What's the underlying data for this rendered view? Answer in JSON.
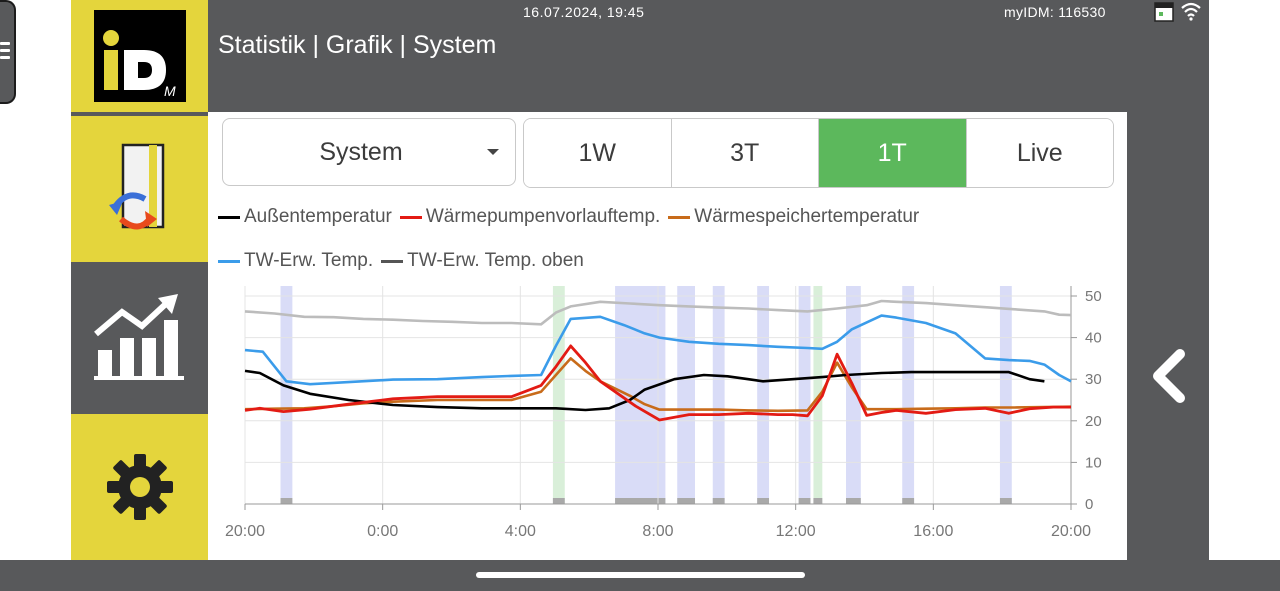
{
  "header": {
    "datetime": "16.07.2024, 19:45",
    "breadcrumb": "Statistik | Grafik | System",
    "device_id": "myIDM: 116530"
  },
  "sidebar": {
    "items": [
      {
        "name": "logo",
        "icon": "idm-logo"
      },
      {
        "name": "heat-pump",
        "icon": "heat-pump-icon"
      },
      {
        "name": "statistics",
        "icon": "bar-chart-trend-icon",
        "active": true
      },
      {
        "name": "settings",
        "icon": "gear-icon"
      }
    ]
  },
  "controls": {
    "dropdown_value": "System",
    "range_buttons": [
      {
        "label": "1W",
        "active": false
      },
      {
        "label": "3T",
        "active": false
      },
      {
        "label": "1T",
        "active": true
      },
      {
        "label": "Live",
        "active": false
      }
    ]
  },
  "colors": {
    "brand_yellow": "#e4d53c",
    "panel_gray": "#58595b",
    "active_green": "#5cb85c",
    "blue_band": "#d9dcf7",
    "green_band": "#d9efd9"
  },
  "chart_data": {
    "type": "line",
    "x_ticks": [
      "20:00",
      "0:00",
      "4:00",
      "8:00",
      "12:00",
      "16:00",
      "20:00"
    ],
    "y_ticks": [
      "0",
      "10",
      "20",
      "30",
      "40",
      "50"
    ],
    "ylim": [
      0,
      50
    ],
    "xlim_hours": [
      0,
      24
    ],
    "legend_position": "top",
    "series": [
      {
        "name": "Außentemperatur",
        "color": "#000000",
        "points": [
          [
            0,
            32
          ],
          [
            0.5,
            31.5
          ],
          [
            1.3,
            28.5
          ],
          [
            2.2,
            26.5
          ],
          [
            3.5,
            25
          ],
          [
            5,
            23.8
          ],
          [
            6.5,
            23.3
          ],
          [
            8,
            23
          ],
          [
            9,
            23
          ],
          [
            10.5,
            23
          ],
          [
            11.5,
            22.6
          ],
          [
            12.3,
            23
          ],
          [
            13,
            25
          ],
          [
            13.5,
            27.5
          ],
          [
            14.5,
            30
          ],
          [
            15.5,
            31
          ],
          [
            16.3,
            30.7
          ],
          [
            17,
            30
          ],
          [
            17.5,
            29.5
          ],
          [
            18.5,
            30
          ],
          [
            19.5,
            30.5
          ],
          [
            20.3,
            31
          ],
          [
            21.5,
            31.5
          ],
          [
            22.5,
            31.7
          ],
          [
            23.8,
            31.7
          ],
          [
            25,
            31.7
          ],
          [
            25.8,
            31.7
          ],
          [
            26.5,
            30
          ],
          [
            27,
            29.5
          ]
        ]
      },
      {
        "name": "Wärmepumpenvorlauftemp.",
        "color": "#e31b14",
        "points": [
          [
            0,
            22.5
          ],
          [
            0.5,
            23
          ],
          [
            1.3,
            22.2
          ],
          [
            2.2,
            22.8
          ],
          [
            3.5,
            24
          ],
          [
            5,
            25.3
          ],
          [
            6.5,
            25.8
          ],
          [
            8,
            25.8
          ],
          [
            9,
            25.8
          ],
          [
            10,
            28.5
          ],
          [
            10.5,
            33
          ],
          [
            11,
            38
          ],
          [
            11.5,
            34
          ],
          [
            12,
            29.5
          ],
          [
            12.5,
            27
          ],
          [
            13.2,
            23.5
          ],
          [
            14,
            20.2
          ],
          [
            15,
            21.5
          ],
          [
            16,
            21.5
          ],
          [
            17,
            21.8
          ],
          [
            18,
            21.5
          ],
          [
            18.5,
            21.5
          ],
          [
            19,
            21.2
          ],
          [
            19.5,
            26
          ],
          [
            20,
            36
          ],
          [
            20.5,
            29
          ],
          [
            21,
            21.3
          ],
          [
            21.5,
            22
          ],
          [
            22,
            22.5
          ],
          [
            23,
            21.8
          ],
          [
            24,
            22.7
          ],
          [
            25,
            23
          ],
          [
            25.8,
            21.8
          ],
          [
            26.5,
            22.9
          ],
          [
            27.3,
            23.3
          ],
          [
            27.9,
            23.3
          ]
        ]
      },
      {
        "name": "Wärmespeichertemperatur",
        "color": "#c86b1a",
        "points": [
          [
            0,
            22.8
          ],
          [
            1,
            22.9
          ],
          [
            2,
            23
          ],
          [
            3,
            23.5
          ],
          [
            4,
            24.2
          ],
          [
            5,
            24.6
          ],
          [
            6.5,
            25
          ],
          [
            8,
            25
          ],
          [
            9,
            25
          ],
          [
            10,
            27
          ],
          [
            10.5,
            31
          ],
          [
            11,
            35
          ],
          [
            11.5,
            32
          ],
          [
            12,
            29.5
          ],
          [
            13,
            26
          ],
          [
            13.5,
            24
          ],
          [
            14,
            22.7
          ],
          [
            15,
            22.7
          ],
          [
            16,
            22.7
          ],
          [
            17,
            22.5
          ],
          [
            18,
            22.4
          ],
          [
            19,
            22.5
          ],
          [
            19.5,
            27
          ],
          [
            20,
            34
          ],
          [
            20.5,
            28
          ],
          [
            21,
            22.8
          ],
          [
            22,
            22.8
          ],
          [
            23,
            22.9
          ],
          [
            24,
            23
          ],
          [
            25,
            23.2
          ],
          [
            26,
            23.2
          ],
          [
            27,
            23.3
          ],
          [
            27.9,
            23.4
          ]
        ]
      },
      {
        "name": "TW-Erw. Temp.",
        "color": "#3b9cea",
        "points": [
          [
            0,
            37
          ],
          [
            0.6,
            36.6
          ],
          [
            1.4,
            29.5
          ],
          [
            2.2,
            28.8
          ],
          [
            3.5,
            29.3
          ],
          [
            5,
            29.9
          ],
          [
            6.5,
            30
          ],
          [
            8,
            30.5
          ],
          [
            9,
            30.8
          ],
          [
            10,
            31
          ],
          [
            10.5,
            38
          ],
          [
            11,
            44.5
          ],
          [
            12,
            45
          ],
          [
            12.8,
            43
          ],
          [
            13.5,
            41
          ],
          [
            14,
            40
          ],
          [
            15,
            39
          ],
          [
            16,
            38.5
          ],
          [
            17,
            38.2
          ],
          [
            18,
            37.8
          ],
          [
            19,
            37.5
          ],
          [
            19.5,
            37.3
          ],
          [
            20,
            39
          ],
          [
            20.5,
            42
          ],
          [
            21.5,
            45.3
          ],
          [
            22,
            44.8
          ],
          [
            23,
            43.5
          ],
          [
            24,
            41
          ],
          [
            25,
            35
          ],
          [
            25.8,
            34.6
          ],
          [
            26.5,
            34.4
          ],
          [
            27,
            33.5
          ],
          [
            27.5,
            31
          ],
          [
            27.9,
            29.5
          ]
        ]
      },
      {
        "name": "TW-Erw. Temp. oben",
        "color": "#bcbcbc",
        "points": [
          [
            0,
            46.3
          ],
          [
            1,
            45.8
          ],
          [
            2,
            45
          ],
          [
            3,
            44.9
          ],
          [
            4,
            44.5
          ],
          [
            5,
            44.3
          ],
          [
            6,
            44
          ],
          [
            7,
            43.8
          ],
          [
            8,
            43.5
          ],
          [
            9,
            43.5
          ],
          [
            10,
            43.2
          ],
          [
            10.5,
            46
          ],
          [
            11,
            47.5
          ],
          [
            12,
            48.6
          ],
          [
            13,
            48.2
          ],
          [
            14,
            47.8
          ],
          [
            15,
            47.5
          ],
          [
            16,
            47.2
          ],
          [
            17,
            47
          ],
          [
            18,
            46.6
          ],
          [
            19,
            46.3
          ],
          [
            20,
            47
          ],
          [
            21,
            47.8
          ],
          [
            21.5,
            48.8
          ],
          [
            22,
            48.6
          ],
          [
            23,
            48.3
          ],
          [
            24,
            47.8
          ],
          [
            25,
            47.3
          ],
          [
            26,
            46.8
          ],
          [
            27,
            46.3
          ],
          [
            27.5,
            45.5
          ],
          [
            27.9,
            45.4
          ]
        ]
      }
    ],
    "highlight_bands_blue": [
      [
        1.2,
        1.6
      ],
      [
        12.5,
        14.2
      ],
      [
        14.6,
        15.2
      ],
      [
        15.8,
        16.2
      ],
      [
        17.3,
        17.7
      ],
      [
        18.7,
        19.1
      ],
      [
        20.3,
        20.8
      ],
      [
        22.2,
        22.6
      ],
      [
        25.5,
        25.9
      ]
    ],
    "highlight_bands_green": [
      [
        10.4,
        10.8
      ],
      [
        19.2,
        19.5
      ]
    ]
  }
}
